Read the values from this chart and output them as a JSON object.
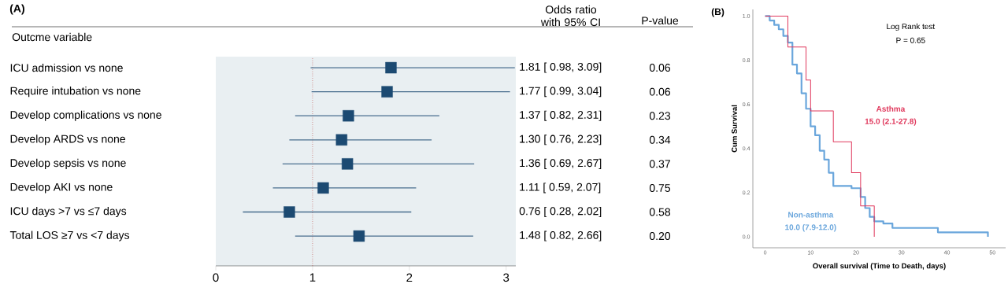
{
  "chart_data": [
    {
      "type": "scatter",
      "orientation": "horizontal",
      "title": "(A)",
      "ylabel": "Outcme variable",
      "categories": [
        "ICU admission vs none",
        "Require intubation vs none",
        "Develop complications vs none",
        "Develop ARDS vs none",
        "Develop sepsis vs none",
        "Develop AKI vs none",
        "ICU days >7 vs ≤7 days",
        "Total LOS ≥7 vs <7 days"
      ],
      "values": [
        1.81,
        1.77,
        1.37,
        1.3,
        1.36,
        1.11,
        0.76,
        1.48
      ],
      "errors": [
        [
          0.98,
          3.09
        ],
        [
          0.99,
          3.04
        ],
        [
          0.82,
          2.31
        ],
        [
          0.76,
          2.23
        ],
        [
          0.69,
          2.67
        ],
        [
          0.59,
          2.07
        ],
        [
          0.28,
          2.02
        ],
        [
          0.82,
          2.66
        ]
      ],
      "value_labels": [
        "1.81 [  0.98,  3.09]",
        "1.77 [  0.99,  3.04]",
        "1.37 [  0.82,  2.31]",
        "1.30 [  0.76,  2.23]",
        "1.36 [  0.69,  2.67]",
        "1.11 [  0.59,  2.07]",
        "0.76 [  0.28,  2.02]",
        "1.48 [  0.82,  2.66]"
      ],
      "color": "#1c4a72",
      "marker": "square",
      "xlim": [
        0,
        3.1
      ],
      "xticks": [
        0,
        1,
        2,
        3
      ],
      "ref_lines": [
        {
          "axis": "x",
          "value": 1,
          "color": "#c0504d",
          "line_style": "dotted"
        }
      ],
      "annotations": [
        "Odds ratio with 95% CI",
        "P-value",
        "0.06",
        "0.06",
        "0.23",
        "0.34",
        "0.37",
        "0.75",
        "0.58",
        "0.20"
      ]
    },
    {
      "type": "step",
      "title": "(B)",
      "xlabel": "Overall survival (Time to Death, days)",
      "ylabel": "Cum Survival",
      "series": [
        {
          "name": "Non-asthma",
          "color": "#6aa6dc",
          "x": [
            0,
            1,
            2,
            3,
            4,
            5,
            6,
            7,
            8,
            9,
            10,
            11,
            12,
            13,
            14,
            15,
            19,
            21,
            22,
            23,
            24,
            26,
            28,
            38,
            49
          ],
          "values": [
            1,
            0.98,
            0.96,
            0.94,
            0.91,
            0.88,
            0.78,
            0.74,
            0.65,
            0.58,
            0.5,
            0.46,
            0.39,
            0.35,
            0.29,
            0.23,
            0.22,
            0.18,
            0.13,
            0.09,
            0.07,
            0.06,
            0.04,
            0.02,
            0.0
          ]
        },
        {
          "name": "Asthma",
          "color": "#e0385c",
          "x": [
            0,
            5,
            9,
            10,
            15,
            19,
            21,
            24
          ],
          "values": [
            1,
            0.86,
            0.71,
            0.57,
            0.43,
            0.29,
            0.14,
            0
          ]
        }
      ],
      "xlim": [
        -2.7,
        52.9
      ],
      "ylim": [
        -0.05,
        1.03
      ],
      "xticks": [
        0,
        10,
        20,
        30,
        40,
        50
      ],
      "yticks": [
        {
          "value": 0,
          "label": "0.0"
        },
        {
          "value": 0.2,
          "label": "0.2"
        },
        {
          "value": 0.4,
          "label": "0.4"
        },
        {
          "value": 0.6,
          "label": "0.6"
        },
        {
          "value": 0.8,
          "label": "0.8"
        },
        {
          "value": 1,
          "label": "1.0"
        }
      ],
      "annotations": [
        "Log Rank test",
        "P = 0.65",
        "10.0 (7.9-12.0)",
        "15.0 (2.1-27.8)"
      ]
    }
  ]
}
